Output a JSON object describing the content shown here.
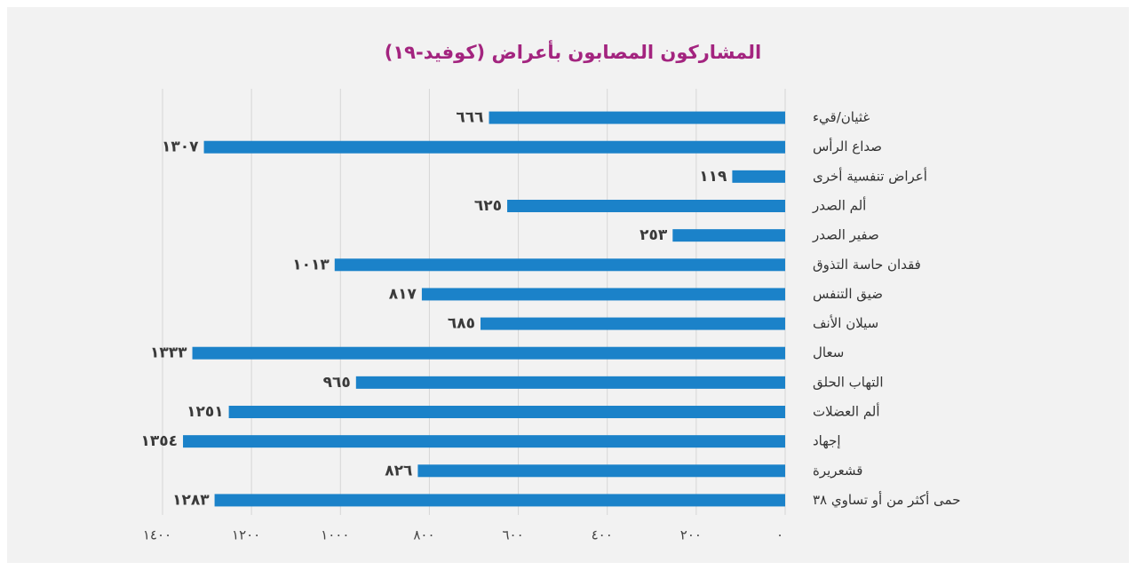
{
  "chart_data": {
    "type": "hbar",
    "title": "المشاركون المصابون بأعراض (كوفيد-١٩)",
    "categories": [
      "غثيان/قيء",
      "صداع الرأس",
      "أعراض تنفسية أخرى",
      "ألم الصدر",
      "صفير الصدر",
      "فقدان حاسة التذوق",
      "ضيق التنفس",
      "سيلان الأنف",
      "سعال",
      "التهاب الحلق",
      "ألم العضلات",
      "إجهاد",
      "قشعريرة",
      "حمى أكثر من أو تساوي ٣٨"
    ],
    "values": [
      666,
      1307,
      119,
      625,
      253,
      1013,
      817,
      685,
      1333,
      965,
      1251,
      1354,
      826,
      1283
    ],
    "value_labels": [
      "٦٦٦",
      "١٣٠٧",
      "١١٩",
      "٦٢٥",
      "٢٥٣",
      "١٠١٣",
      "٨١٧",
      "٦٨٥",
      "١٣٣٣",
      "٩٦٥",
      "١٢٥١",
      "١٣٥٤",
      "٨٢٦",
      "١٢٨٣"
    ],
    "color": "#1b82c9",
    "xlim": [
      0,
      1400
    ],
    "xticks": [
      {
        "value": 0,
        "label": "٠"
      },
      {
        "value": 200,
        "label": "٢٠٠"
      },
      {
        "value": 400,
        "label": "٤٠٠"
      },
      {
        "value": 600,
        "label": "٦٠٠"
      },
      {
        "value": 800,
        "label": "٨٠٠"
      },
      {
        "value": 1000,
        "label": "١٠٠٠"
      },
      {
        "value": 1200,
        "label": "١٢٠٠"
      },
      {
        "value": 1400,
        "label": "١٤٠٠"
      }
    ],
    "reversed": true,
    "grid": true
  }
}
